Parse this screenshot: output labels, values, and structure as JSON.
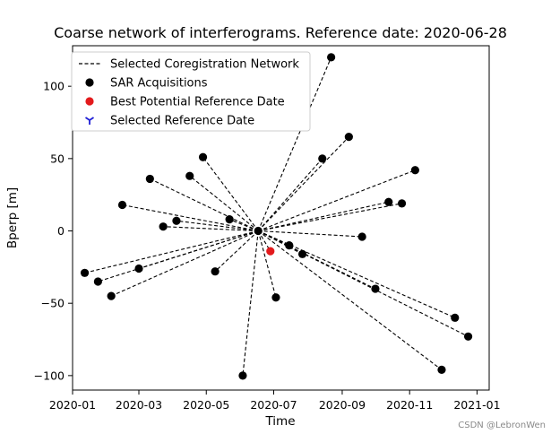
{
  "chart_data": {
    "type": "scatter",
    "title": "Coarse network of interferograms. Reference date: 2020-06-28",
    "xlabel": "Time",
    "ylabel": "Bperp [m]",
    "xlim": [
      "2020-01-01",
      "2021-01-12"
    ],
    "ylim": [
      -110,
      128
    ],
    "x_ticks": [
      "2020-01",
      "2020-03",
      "2020-05",
      "2020-07",
      "2020-09",
      "2020-11",
      "2021-01"
    ],
    "x_tick_dates": [
      "2020-01-01",
      "2020-03-01",
      "2020-05-01",
      "2020-07-01",
      "2020-09-01",
      "2020-11-01",
      "2021-01-01"
    ],
    "y_ticks": [
      100,
      50,
      0,
      -50,
      -100
    ],
    "grid": false,
    "legend_position": "top-left",
    "hub": {
      "date": "2020-06-17",
      "bperp": 0
    },
    "acquisitions": [
      {
        "date": "2020-01-12",
        "bperp": -29
      },
      {
        "date": "2020-01-24",
        "bperp": -35
      },
      {
        "date": "2020-02-05",
        "bperp": -45
      },
      {
        "date": "2020-02-15",
        "bperp": 18
      },
      {
        "date": "2020-03-01",
        "bperp": -26
      },
      {
        "date": "2020-03-11",
        "bperp": 36
      },
      {
        "date": "2020-03-23",
        "bperp": 3
      },
      {
        "date": "2020-04-04",
        "bperp": 7
      },
      {
        "date": "2020-04-16",
        "bperp": 38
      },
      {
        "date": "2020-04-28",
        "bperp": 51
      },
      {
        "date": "2020-05-09",
        "bperp": -28
      },
      {
        "date": "2020-05-22",
        "bperp": 8
      },
      {
        "date": "2020-06-03",
        "bperp": -100
      },
      {
        "date": "2020-07-03",
        "bperp": -46
      },
      {
        "date": "2020-07-15",
        "bperp": -10
      },
      {
        "date": "2020-07-27",
        "bperp": -16
      },
      {
        "date": "2020-08-14",
        "bperp": 50
      },
      {
        "date": "2020-08-22",
        "bperp": 120
      },
      {
        "date": "2020-09-07",
        "bperp": 65
      },
      {
        "date": "2020-09-19",
        "bperp": -4
      },
      {
        "date": "2020-10-01",
        "bperp": -40
      },
      {
        "date": "2020-10-13",
        "bperp": 20
      },
      {
        "date": "2020-10-25",
        "bperp": 19
      },
      {
        "date": "2020-11-06",
        "bperp": 42
      },
      {
        "date": "2020-11-30",
        "bperp": -96
      },
      {
        "date": "2020-12-12",
        "bperp": -60
      },
      {
        "date": "2020-12-24",
        "bperp": -73
      }
    ],
    "best_potential_reference": {
      "date": "2020-06-28",
      "bperp": -14
    },
    "legend": [
      {
        "label": "Selected Coregistration Network",
        "marker": "dashed-line",
        "color": "#000000"
      },
      {
        "label": "SAR Acquisitions",
        "marker": "dot",
        "color": "#000000"
      },
      {
        "label": "Best Potential Reference Date",
        "marker": "dot",
        "color": "#e31a1c"
      },
      {
        "label": "Selected Reference Date",
        "marker": "tri-down",
        "color": "#1f1fd6"
      }
    ]
  },
  "watermark": "CSDN @LebronWen"
}
